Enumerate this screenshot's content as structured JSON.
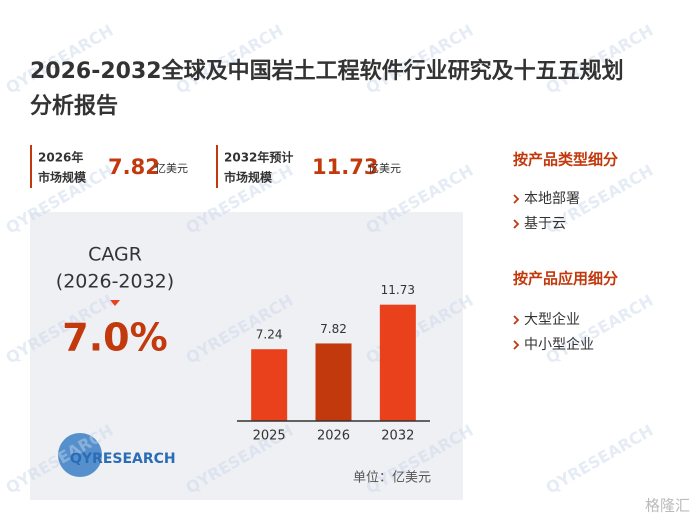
{
  "header": {
    "title_lines": [
      "2026-2032全球及中国岩土工程软件行业研究及十五五规划",
      "分析报告"
    ]
  },
  "stats": [
    {
      "label_lines": [
        "2026年",
        "市场规模"
      ],
      "value": "7.82",
      "unit": "亿美元"
    },
    {
      "label_lines": [
        "2032年预计",
        "市场规模"
      ],
      "value": "11.73",
      "unit": "亿美元"
    }
  ],
  "cagr": {
    "label": "CAGR",
    "period": "(2026-2032)",
    "value": "7.0%"
  },
  "logo": {
    "text": "QYRESEARCH"
  },
  "watermark": {
    "brand": "QYRESEARCH",
    "corner": "格隆汇"
  },
  "chart_data": {
    "type": "bar",
    "categories": [
      "2025",
      "2026",
      "2032"
    ],
    "values": [
      7.24,
      7.82,
      11.73
    ],
    "colors": [
      "#e8411c",
      "#c2390d",
      "#e8411c"
    ],
    "ylim": [
      0,
      12
    ],
    "unit_note": "单位：亿美元"
  },
  "sidebar": [
    {
      "heading": "按产品类型细分",
      "items": [
        "本地部署",
        "基于云"
      ]
    },
    {
      "heading": "按产品应用细分",
      "items": [
        "大型企业",
        "中小型企业"
      ]
    }
  ]
}
